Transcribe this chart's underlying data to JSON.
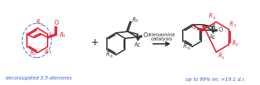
{
  "bg_color": "#ffffff",
  "red_color": "#e8192c",
  "blue_color": "#1f4de8",
  "black_color": "#1a1a1a",
  "dark_gray": "#333333",
  "title_text": "",
  "label_deconjugated": "deconjugated 3,5-dienones",
  "label_trienamine1": "trienamine",
  "label_trienamine2": "catalysis",
  "label_result": "up to 99% ee, >19:1 d.r.",
  "plus_sign": "+",
  "arrow_label": "→",
  "figsize": [
    3.77,
    1.24
  ],
  "dpi": 100
}
